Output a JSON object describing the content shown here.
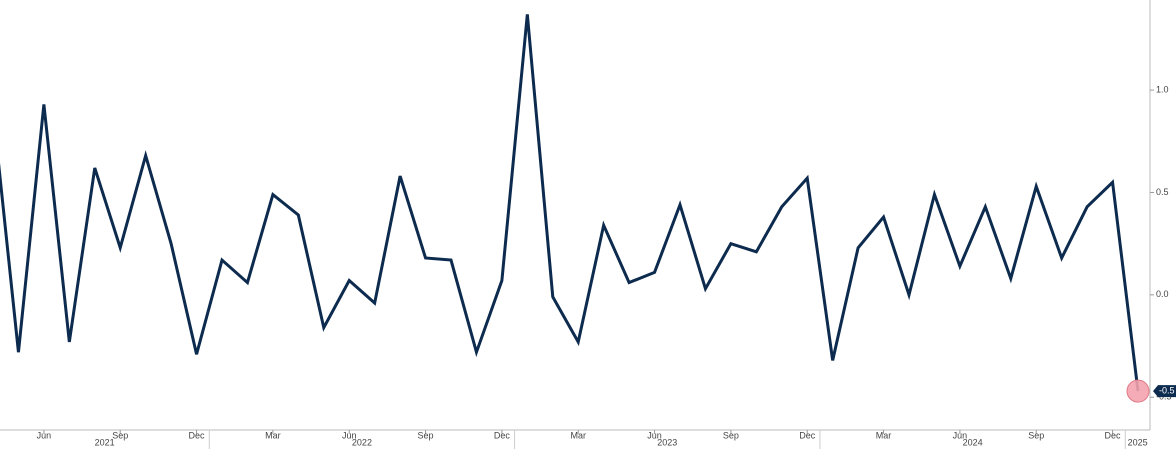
{
  "chart_data": {
    "type": "line",
    "x": [
      "2021-04",
      "2021-05",
      "2021-06",
      "2021-07",
      "2021-08",
      "2021-09",
      "2021-10",
      "2021-11",
      "2021-12",
      "2022-01",
      "2022-02",
      "2022-03",
      "2022-04",
      "2022-05",
      "2022-06",
      "2022-07",
      "2022-08",
      "2022-09",
      "2022-10",
      "2022-11",
      "2022-12",
      "2023-01",
      "2023-02",
      "2023-03",
      "2023-04",
      "2023-05",
      "2023-06",
      "2023-07",
      "2023-08",
      "2023-09",
      "2023-10",
      "2023-11",
      "2023-12",
      "2024-01",
      "2024-02",
      "2024-03",
      "2024-04",
      "2024-05",
      "2024-06",
      "2024-07",
      "2024-08",
      "2024-09",
      "2024-10",
      "2024-11",
      "2024-12",
      "2025-01"
    ],
    "series": [
      {
        "color": "#0d2b4e",
        "values": [
          0.9,
          -0.28,
          0.93,
          -0.23,
          0.62,
          0.23,
          0.68,
          0.25,
          -0.29,
          0.17,
          0.06,
          0.49,
          0.39,
          -0.16,
          0.07,
          -0.04,
          0.58,
          0.18,
          0.17,
          -0.28,
          0.07,
          1.37,
          -0.01,
          -0.23,
          0.34,
          0.06,
          0.11,
          0.44,
          0.03,
          0.25,
          0.21,
          0.43,
          0.57,
          -0.32,
          0.23,
          0.38,
          0.0,
          0.49,
          0.14,
          0.43,
          0.08,
          0.53,
          0.18,
          0.43,
          0.55,
          -0.47
        ],
        "value_labels": [
          null,
          null,
          null,
          null,
          null,
          null,
          null,
          null,
          null,
          null,
          null,
          null,
          null,
          null,
          null,
          null,
          null,
          null,
          null,
          null,
          null,
          null,
          null,
          null,
          null,
          null,
          null,
          null,
          null,
          null,
          null,
          null,
          null,
          null,
          null,
          null,
          null,
          null,
          null,
          null,
          null,
          null,
          null,
          null,
          null,
          "-0.5"
        ]
      }
    ],
    "xlim": [
      "2021-04",
      "2025-01"
    ],
    "xticks": [
      {
        "value": "2021-06",
        "label": "Jun"
      },
      {
        "value": "2021-09",
        "label": "Sep"
      },
      {
        "value": "2021-12",
        "label": "Dec"
      },
      {
        "value": "2022-03",
        "label": "Mar"
      },
      {
        "value": "2022-06",
        "label": "Jun"
      },
      {
        "value": "2022-09",
        "label": "Sep"
      },
      {
        "value": "2022-12",
        "label": "Dec"
      },
      {
        "value": "2023-03",
        "label": "Mar"
      },
      {
        "value": "2023-06",
        "label": "Jun"
      },
      {
        "value": "2023-09",
        "label": "Sep"
      },
      {
        "value": "2023-12",
        "label": "Dec"
      },
      {
        "value": "2024-03",
        "label": "Mar"
      },
      {
        "value": "2024-06",
        "label": "Jun"
      },
      {
        "value": "2024-09",
        "label": "Sep"
      },
      {
        "value": "2024-12",
        "label": "Dec"
      }
    ],
    "years": [
      "2021",
      "2022",
      "2023",
      "2024",
      "2025"
    ],
    "ylim": [
      -0.66,
      1.44
    ],
    "yticks": [
      {
        "value": -0.5,
        "label": "-0.5"
      },
      {
        "value": 0,
        "label": "0.0"
      },
      {
        "value": 0.5,
        "label": "0.5"
      },
      {
        "value": 1,
        "label": "1.0"
      }
    ],
    "grid": false,
    "highlight_color": "#f4a3ae"
  }
}
